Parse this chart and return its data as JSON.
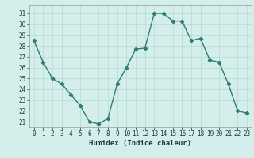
{
  "xlabel": "Humidex (Indice chaleur)",
  "x_values": [
    0,
    1,
    2,
    3,
    4,
    5,
    6,
    7,
    8,
    9,
    10,
    11,
    12,
    13,
    14,
    15,
    16,
    17,
    18,
    19,
    20,
    21,
    22,
    23
  ],
  "y_values": [
    28.5,
    26.5,
    25.0,
    24.5,
    23.5,
    22.5,
    21.0,
    20.8,
    21.3,
    24.5,
    26.0,
    27.7,
    27.8,
    31.0,
    31.0,
    30.3,
    30.3,
    28.5,
    28.7,
    26.7,
    26.5,
    24.5,
    22.0,
    21.8
  ],
  "line_color": "#2e7d6e",
  "bg_color": "#d4eeeb",
  "grid_color": "#b8d8d4",
  "ylim_min": 20.5,
  "ylim_max": 31.8,
  "yticks": [
    21,
    22,
    23,
    24,
    25,
    26,
    27,
    28,
    29,
    30,
    31
  ],
  "marker": "D",
  "marker_size": 2.2,
  "line_width": 1.0,
  "tick_fontsize": 5.5,
  "xlabel_fontsize": 6.5
}
